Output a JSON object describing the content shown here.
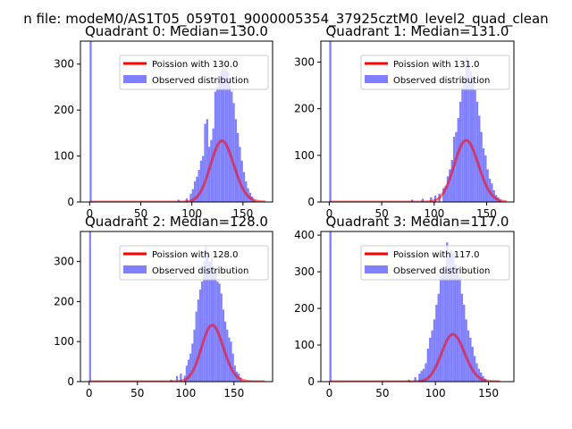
{
  "figure": {
    "suptitle": "n file: modeM0/AS1T05_059T01_9000005354_37925cztM0_level2_quad_clean"
  },
  "chart_data": [
    {
      "type": "bar",
      "title": "Quadrant 0: Median=130.0",
      "xlim": [
        -9,
        179
      ],
      "ylim": [
        0,
        350
      ],
      "xticks": [
        0,
        50,
        100,
        150
      ],
      "yticks": [
        0,
        100,
        200,
        300
      ],
      "bins": [
        [
          0,
          2,
          350
        ],
        [
          86,
          2,
          5
        ],
        [
          94,
          2,
          8
        ],
        [
          98,
          2,
          18
        ],
        [
          100,
          2,
          28
        ],
        [
          102,
          2,
          45
        ],
        [
          104,
          2,
          55
        ],
        [
          106,
          2,
          70
        ],
        [
          108,
          2,
          90
        ],
        [
          110,
          2,
          100
        ],
        [
          112,
          2,
          170
        ],
        [
          114,
          2,
          180
        ],
        [
          116,
          2,
          120
        ],
        [
          118,
          2,
          135
        ],
        [
          120,
          2,
          160
        ],
        [
          122,
          2,
          240
        ],
        [
          124,
          2,
          250
        ],
        [
          126,
          2,
          275
        ],
        [
          128,
          2,
          285
        ],
        [
          130,
          2,
          295
        ],
        [
          132,
          2,
          290
        ],
        [
          134,
          2,
          285
        ],
        [
          136,
          2,
          270
        ],
        [
          138,
          2,
          240
        ],
        [
          140,
          2,
          215
        ],
        [
          142,
          2,
          180
        ],
        [
          144,
          2,
          150
        ],
        [
          146,
          2,
          120
        ],
        [
          148,
          2,
          90
        ],
        [
          150,
          2,
          65
        ],
        [
          152,
          2,
          45
        ],
        [
          154,
          2,
          30
        ],
        [
          156,
          2,
          20
        ],
        [
          158,
          2,
          12
        ],
        [
          160,
          2,
          5
        ]
      ],
      "poisson_mean": 130.0,
      "poisson_n": 3800,
      "poisson_x": [
        0,
        172
      ],
      "legend": {
        "line": "Poission with 130.0",
        "bar": "Observed distribution"
      }
    },
    {
      "type": "bar",
      "title": "Quadrant 1: Median=131.0",
      "xlim": [
        -8,
        176
      ],
      "ylim": [
        0,
        345
      ],
      "xticks": [
        0,
        50,
        100,
        150
      ],
      "yticks": [
        0,
        100,
        200,
        300
      ],
      "bins": [
        [
          0,
          2,
          345
        ],
        [
          78,
          2,
          5
        ],
        [
          88,
          2,
          7
        ],
        [
          96,
          2,
          10
        ],
        [
          100,
          2,
          14
        ],
        [
          104,
          2,
          18
        ],
        [
          108,
          2,
          30
        ],
        [
          110,
          2,
          35
        ],
        [
          112,
          2,
          55
        ],
        [
          114,
          2,
          70
        ],
        [
          116,
          2,
          90
        ],
        [
          118,
          2,
          140
        ],
        [
          120,
          2,
          150
        ],
        [
          122,
          2,
          180
        ],
        [
          124,
          2,
          215
        ],
        [
          126,
          2,
          245
        ],
        [
          128,
          2,
          265
        ],
        [
          130,
          2,
          310
        ],
        [
          132,
          2,
          305
        ],
        [
          134,
          2,
          280
        ],
        [
          136,
          2,
          270
        ],
        [
          138,
          2,
          240
        ],
        [
          140,
          2,
          215
        ],
        [
          142,
          2,
          185
        ],
        [
          144,
          2,
          150
        ],
        [
          146,
          2,
          115
        ],
        [
          148,
          2,
          100
        ],
        [
          150,
          2,
          70
        ],
        [
          152,
          2,
          50
        ],
        [
          154,
          2,
          40
        ],
        [
          156,
          2,
          25
        ],
        [
          158,
          2,
          15
        ],
        [
          160,
          2,
          10
        ],
        [
          162,
          2,
          5
        ]
      ],
      "poisson_mean": 131.0,
      "poisson_n": 3800,
      "poisson_x": [
        0,
        169
      ],
      "legend": {
        "line": "Poission with 131.0",
        "bar": "Observed distribution"
      }
    },
    {
      "type": "bar",
      "title": "Quadrant 2: Median=128.0",
      "xlim": [
        -9,
        190
      ],
      "ylim": [
        0,
        375
      ],
      "xticks": [
        0,
        50,
        100,
        150
      ],
      "yticks": [
        0,
        100,
        200,
        300
      ],
      "bins": [
        [
          0,
          2,
          375
        ],
        [
          84,
          2,
          5
        ],
        [
          90,
          2,
          14
        ],
        [
          94,
          2,
          20
        ],
        [
          98,
          2,
          15
        ],
        [
          100,
          2,
          40
        ],
        [
          102,
          2,
          55
        ],
        [
          104,
          2,
          70
        ],
        [
          106,
          2,
          95
        ],
        [
          108,
          2,
          130
        ],
        [
          110,
          2,
          175
        ],
        [
          112,
          2,
          205
        ],
        [
          114,
          2,
          230
        ],
        [
          116,
          2,
          250
        ],
        [
          118,
          2,
          300
        ],
        [
          120,
          2,
          340
        ],
        [
          122,
          2,
          325
        ],
        [
          124,
          2,
          300
        ],
        [
          126,
          2,
          310
        ],
        [
          128,
          2,
          290
        ],
        [
          130,
          2,
          280
        ],
        [
          132,
          2,
          250
        ],
        [
          134,
          2,
          245
        ],
        [
          136,
          2,
          220
        ],
        [
          138,
          2,
          180
        ],
        [
          140,
          2,
          150
        ],
        [
          142,
          2,
          130
        ],
        [
          144,
          2,
          110
        ],
        [
          146,
          2,
          100
        ],
        [
          148,
          2,
          70
        ],
        [
          150,
          2,
          40
        ],
        [
          152,
          2,
          25
        ],
        [
          154,
          2,
          20
        ],
        [
          156,
          2,
          10
        ]
      ],
      "poisson_mean": 128.0,
      "poisson_n": 4000,
      "poisson_x": [
        0,
        182
      ],
      "legend": {
        "line": "Poission with 128.0",
        "bar": "Observed distribution"
      }
    },
    {
      "type": "bar",
      "title": "Quadrant 3: Median=117.0",
      "xlim": [
        -8,
        174
      ],
      "ylim": [
        0,
        410
      ],
      "xticks": [
        0,
        50,
        100,
        150
      ],
      "yticks": [
        0,
        100,
        200,
        300,
        400
      ],
      "bins": [
        [
          0,
          2,
          410
        ],
        [
          74,
          2,
          5
        ],
        [
          80,
          2,
          12
        ],
        [
          84,
          2,
          22
        ],
        [
          86,
          2,
          30
        ],
        [
          88,
          2,
          35
        ],
        [
          90,
          2,
          50
        ],
        [
          92,
          2,
          90
        ],
        [
          94,
          2,
          120
        ],
        [
          96,
          2,
          140
        ],
        [
          98,
          2,
          170
        ],
        [
          100,
          2,
          210
        ],
        [
          102,
          2,
          240
        ],
        [
          104,
          2,
          290
        ],
        [
          106,
          2,
          295
        ],
        [
          108,
          2,
          310
        ],
        [
          110,
          2,
          380
        ],
        [
          112,
          2,
          340
        ],
        [
          114,
          2,
          360
        ],
        [
          116,
          2,
          350
        ],
        [
          118,
          2,
          320
        ],
        [
          120,
          2,
          310
        ],
        [
          122,
          2,
          285
        ],
        [
          124,
          2,
          240
        ],
        [
          126,
          2,
          210
        ],
        [
          128,
          2,
          170
        ],
        [
          130,
          2,
          140
        ],
        [
          132,
          2,
          120
        ],
        [
          134,
          2,
          95
        ],
        [
          136,
          2,
          70
        ],
        [
          138,
          2,
          50
        ],
        [
          140,
          2,
          35
        ],
        [
          142,
          2,
          25
        ],
        [
          144,
          2,
          15
        ],
        [
          146,
          2,
          8
        ]
      ],
      "poisson_mean": 117.0,
      "poisson_n": 3500,
      "poisson_x": [
        0,
        161
      ],
      "legend": {
        "line": "Poission with 117.0",
        "bar": "Observed distribution"
      }
    }
  ],
  "colors": {
    "bar": "#8080ff",
    "line": "#ff0000",
    "axis": "#000000",
    "legend_border": "#cccccc"
  }
}
